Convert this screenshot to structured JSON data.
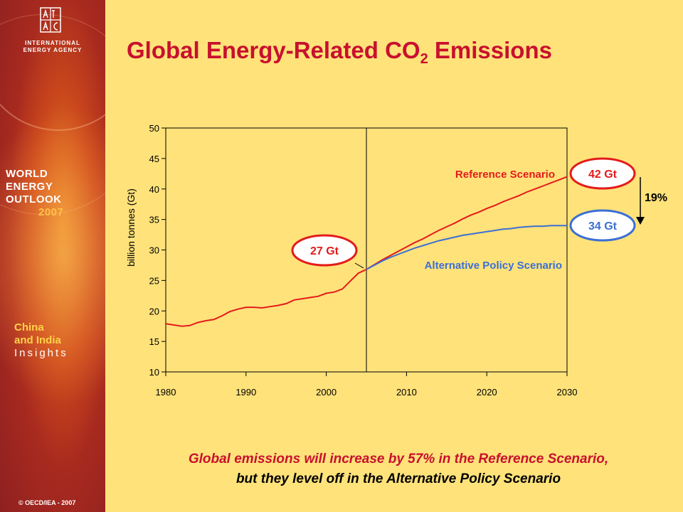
{
  "sidebar": {
    "org_line1": "INTERNATIONAL",
    "org_line2": "ENERGY AGENCY",
    "weo_line1": "WORLD",
    "weo_line2": "ENERGY",
    "weo_line3": "OUTLOOK",
    "weo_year": "2007",
    "insights_line1": "China",
    "insights_line2": "and India",
    "insights_line3": "Insights",
    "copyright": "© OECD/IEA - 2007"
  },
  "header": {
    "title_main": "Global Energy-Related CO",
    "title_sub": "2",
    "title_end": " Emissions"
  },
  "caption": {
    "line1": "Global emissions will increase by 57% in the Reference Scenario,",
    "line2": "but they level off in the Alternative Policy Scenario"
  },
  "colors": {
    "reference": "#E41B1B",
    "alternative": "#3C6FD4",
    "accent": "#C8102E",
    "background": "#FFE27A"
  },
  "chart_data": {
    "type": "line",
    "ylabel": "billion tonnes (Gt)",
    "xlabel": "",
    "xlim": [
      1980,
      2030
    ],
    "ylim": [
      10,
      50
    ],
    "x_ticks": [
      1980,
      1990,
      2000,
      2010,
      2020,
      2030
    ],
    "y_ticks": [
      10,
      15,
      20,
      25,
      30,
      35,
      40,
      45,
      50
    ],
    "grid": false,
    "divider_year": 2005,
    "series": [
      {
        "name": "Reference Scenario",
        "color": "#E41B1B",
        "x": [
          1980,
          1981,
          1982,
          1983,
          1984,
          1985,
          1986,
          1987,
          1988,
          1989,
          1990,
          1991,
          1992,
          1993,
          1994,
          1995,
          1996,
          1997,
          1998,
          1999,
          2000,
          2001,
          2002,
          2003,
          2004,
          2005,
          2006,
          2007,
          2008,
          2009,
          2010,
          2011,
          2012,
          2013,
          2014,
          2015,
          2016,
          2017,
          2018,
          2019,
          2020,
          2021,
          2022,
          2023,
          2024,
          2025,
          2026,
          2027,
          2028,
          2029,
          2030
        ],
        "y": [
          17.9,
          17.7,
          17.5,
          17.6,
          18.1,
          18.4,
          18.6,
          19.2,
          19.9,
          20.3,
          20.6,
          20.6,
          20.5,
          20.7,
          20.9,
          21.2,
          21.8,
          22.0,
          22.2,
          22.4,
          22.9,
          23.1,
          23.6,
          24.9,
          26.2,
          26.8,
          27.6,
          28.4,
          29.1,
          29.8,
          30.5,
          31.2,
          31.8,
          32.5,
          33.2,
          33.8,
          34.4,
          35.1,
          35.7,
          36.2,
          36.8,
          37.3,
          37.9,
          38.4,
          38.9,
          39.5,
          40.0,
          40.5,
          41.0,
          41.5,
          42.0
        ]
      },
      {
        "name": "Alternative Policy Scenario",
        "color": "#3C6FD4",
        "x": [
          2005,
          2006,
          2007,
          2008,
          2009,
          2010,
          2011,
          2012,
          2013,
          2014,
          2015,
          2016,
          2017,
          2018,
          2019,
          2020,
          2021,
          2022,
          2023,
          2024,
          2025,
          2026,
          2027,
          2028,
          2029,
          2030
        ],
        "y": [
          26.8,
          27.5,
          28.2,
          28.8,
          29.3,
          29.8,
          30.3,
          30.7,
          31.1,
          31.5,
          31.8,
          32.1,
          32.4,
          32.6,
          32.8,
          33.0,
          33.2,
          33.4,
          33.5,
          33.7,
          33.8,
          33.9,
          33.9,
          34.0,
          34.0,
          34.0
        ]
      }
    ],
    "series_labels": [
      {
        "text": "Reference Scenario",
        "color": "#E41B1B"
      },
      {
        "text": "Alternative Policy Scenario",
        "color": "#3C6FD4"
      }
    ],
    "annotations": [
      {
        "text": "27 Gt",
        "color": "#E41B1B",
        "x": 2005,
        "y": 26.8
      },
      {
        "text": "42 Gt",
        "color": "#E41B1B",
        "x": 2030,
        "y": 42.0
      },
      {
        "text": "34 Gt",
        "color": "#3C6FD4",
        "x": 2030,
        "y": 34.0
      },
      {
        "text": "19%",
        "color": "#000000"
      }
    ]
  }
}
